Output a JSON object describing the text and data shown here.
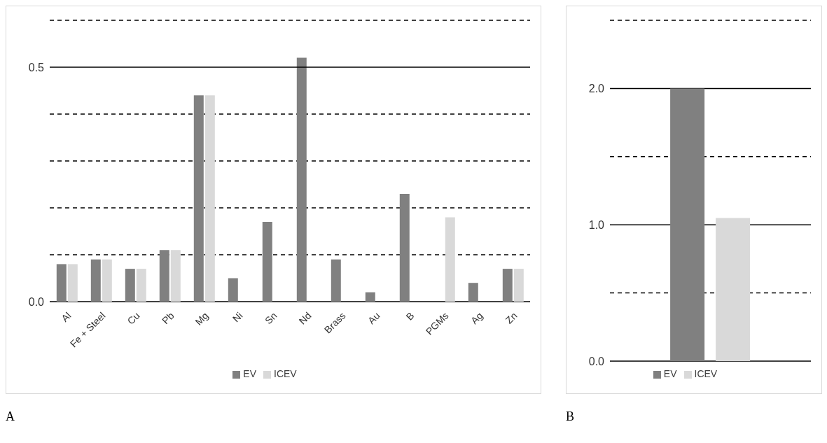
{
  "chart_data": [
    {
      "type": "bar",
      "categories": [
        "Al",
        "Fe + Steel",
        "Cu",
        "Pb",
        "Mg",
        "Ni",
        "Sn",
        "Nd",
        "Brass",
        "Au",
        "B",
        "PGMs",
        "Ag",
        "Zn"
      ],
      "series": [
        {
          "name": "EV",
          "color": "#808080",
          "values": [
            0.08,
            0.09,
            0.07,
            0.11,
            0.44,
            0.05,
            0.17,
            0.52,
            0.09,
            0.02,
            0.23,
            null,
            0.04,
            0.07
          ]
        },
        {
          "name": "ICEV",
          "color": "#d9d9d9",
          "values": [
            0.08,
            0.09,
            0.07,
            0.11,
            0.44,
            null,
            null,
            null,
            null,
            null,
            null,
            0.18,
            null,
            0.07
          ]
        }
      ],
      "ylim": [
        0,
        0.6
      ],
      "yticks": [
        {
          "value": 0,
          "label": "0.0"
        },
        {
          "value": 0.1,
          "label": null
        },
        {
          "value": 0.2,
          "label": null
        },
        {
          "value": 0.3,
          "label": null
        },
        {
          "value": 0.4,
          "label": null
        },
        0.5,
        {
          "value": 0.6,
          "label": null
        }
      ],
      "grid": "y",
      "legend": "bottom",
      "annotations": [
        "A"
      ],
      "ref_lines": [
        {
          "axis": "y",
          "value": 0.5,
          "color": "#000000",
          "line_style": "solid"
        }
      ]
    },
    {
      "type": "bar",
      "categories": [
        null
      ],
      "series": [
        {
          "name": "EV",
          "color": "#808080",
          "values": [
            2.0
          ]
        },
        {
          "name": "ICEV",
          "color": "#d9d9d9",
          "values": [
            1.05
          ]
        }
      ],
      "ylim": [
        0,
        2.5
      ],
      "yticks": [
        {
          "value": 0,
          "label": "0.0"
        },
        {
          "value": 0.5,
          "label": null
        },
        {
          "value": 1,
          "label": "1.0"
        },
        {
          "value": 1.5,
          "label": null
        },
        {
          "value": 2,
          "label": "2.0"
        },
        {
          "value": 2.5,
          "label": null
        }
      ],
      "grid": "y",
      "legend": "bottom",
      "annotations": [
        "B"
      ]
    }
  ]
}
